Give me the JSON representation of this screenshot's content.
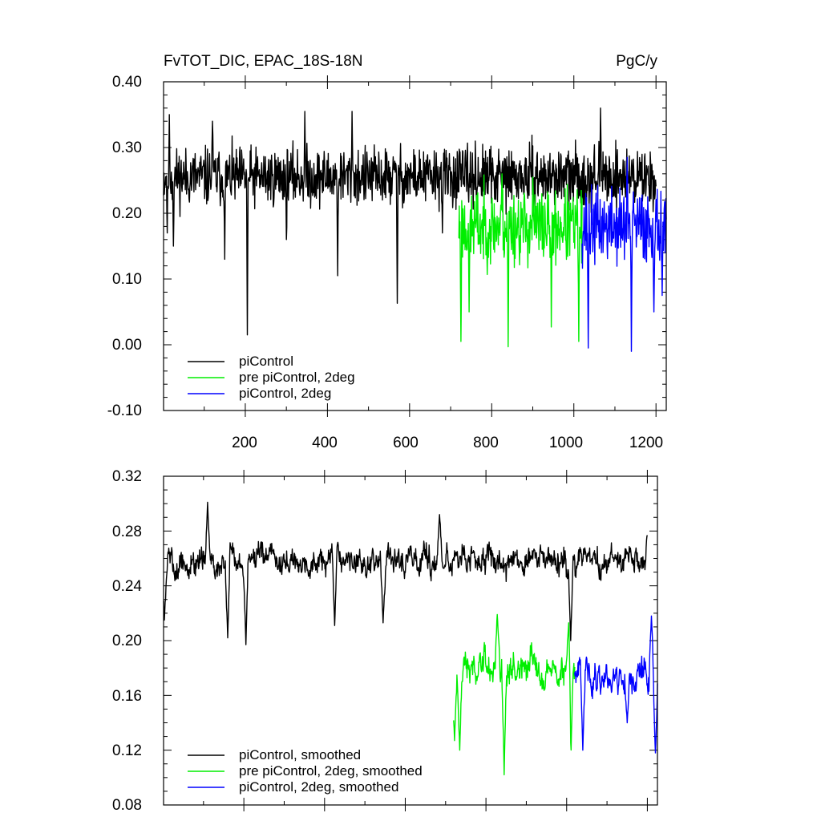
{
  "chart_data": [
    {
      "type": "line",
      "title": "FvTOT_DIC, EPAC_18S-18N",
      "units": "PgC/y",
      "xlim": [
        1,
        1225
      ],
      "ylim": [
        -0.1,
        0.4
      ],
      "x_ticks": [
        "200",
        "400",
        "600",
        "800",
        "1000",
        "1200"
      ],
      "y_ticks": [
        "-0.10",
        "0.00",
        "0.10",
        "0.20",
        "0.30",
        "0.40"
      ],
      "legend_position": "bottom-left",
      "series": [
        {
          "name": "piControl",
          "color": "#000000",
          "x_range": [
            1,
            1200
          ],
          "mean": 0.255,
          "amplitude": 0.035,
          "seed": 11,
          "dips": [
            [
              10,
              0.17
            ],
            [
              25,
              0.15
            ],
            [
              150,
              0.13
            ],
            [
              205,
              0.015
            ],
            [
              300,
              0.16
            ],
            [
              425,
              0.105
            ],
            [
              570,
              0.063
            ],
            [
              680,
              0.17
            ]
          ],
          "peaks": [
            [
              15,
              0.35
            ],
            [
              120,
              0.34
            ],
            [
              345,
              0.355
            ],
            [
              460,
              0.355
            ],
            [
              1065,
              0.36
            ]
          ]
        },
        {
          "name": "pre piControl, 2deg",
          "color": "#00ee00",
          "x_range": [
            720,
            1020
          ],
          "mean": 0.18,
          "amplitude": 0.045,
          "seed": 23,
          "dips": [
            [
              725,
              0.005
            ],
            [
              745,
              0.05
            ],
            [
              840,
              -0.003
            ],
            [
              945,
              0.027
            ],
            [
              1012,
              0.005
            ]
          ],
          "peaks": [
            [
              825,
              0.26
            ],
            [
              900,
              0.255
            ]
          ]
        },
        {
          "name": "piControl, 2deg",
          "color": "#0000ff",
          "x_range": [
            1020,
            1225
          ],
          "mean": 0.18,
          "amplitude": 0.045,
          "seed": 37,
          "dips": [
            [
              1035,
              -0.005
            ],
            [
              1140,
              -0.01
            ],
            [
              1195,
              0.05
            ],
            [
              1215,
              0.075
            ]
          ],
          "peaks": [
            [
              1130,
              0.285
            ]
          ]
        }
      ]
    },
    {
      "type": "line",
      "xlim": [
        1,
        1225
      ],
      "ylim": [
        0.08,
        0.32
      ],
      "y_ticks": [
        "0.08",
        "0.12",
        "0.16",
        "0.20",
        "0.24",
        "0.28",
        "0.32"
      ],
      "legend_position": "bottom-left",
      "series": [
        {
          "name": "piControl, smoothed",
          "color": "#000000",
          "x_range": [
            1,
            1200
          ],
          "mean": 0.258,
          "amplitude": 0.013,
          "seed": 5,
          "dips": [
            [
              3,
              0.215
            ],
            [
              160,
              0.202
            ],
            [
              205,
              0.197
            ],
            [
              425,
              0.211
            ],
            [
              545,
              0.213
            ],
            [
              1010,
              0.2
            ]
          ],
          "peaks": [
            [
              110,
              0.301
            ],
            [
              685,
              0.292
            ],
            [
              1200,
              0.277
            ]
          ]
        },
        {
          "name": "pre piControl, 2deg, smoothed",
          "color": "#00ee00",
          "x_range": [
            720,
            1020
          ],
          "mean": 0.18,
          "amplitude": 0.015,
          "seed": 19,
          "dips": [
            [
              722,
              0.127
            ],
            [
              735,
              0.12
            ],
            [
              845,
              0.102
            ],
            [
              1010,
              0.108
            ]
          ],
          "peaks": [
            [
              828,
              0.219
            ],
            [
              1005,
              0.213
            ]
          ]
        },
        {
          "name": "piControl, 2deg, smoothed",
          "color": "#0000ff",
          "x_range": [
            1020,
            1225
          ],
          "mean": 0.175,
          "amplitude": 0.015,
          "seed": 41,
          "dips": [
            [
              1040,
              0.12
            ],
            [
              1150,
              0.14
            ],
            [
              1220,
              0.118
            ]
          ],
          "peaks": [
            [
              1210,
              0.218
            ]
          ]
        }
      ]
    }
  ]
}
